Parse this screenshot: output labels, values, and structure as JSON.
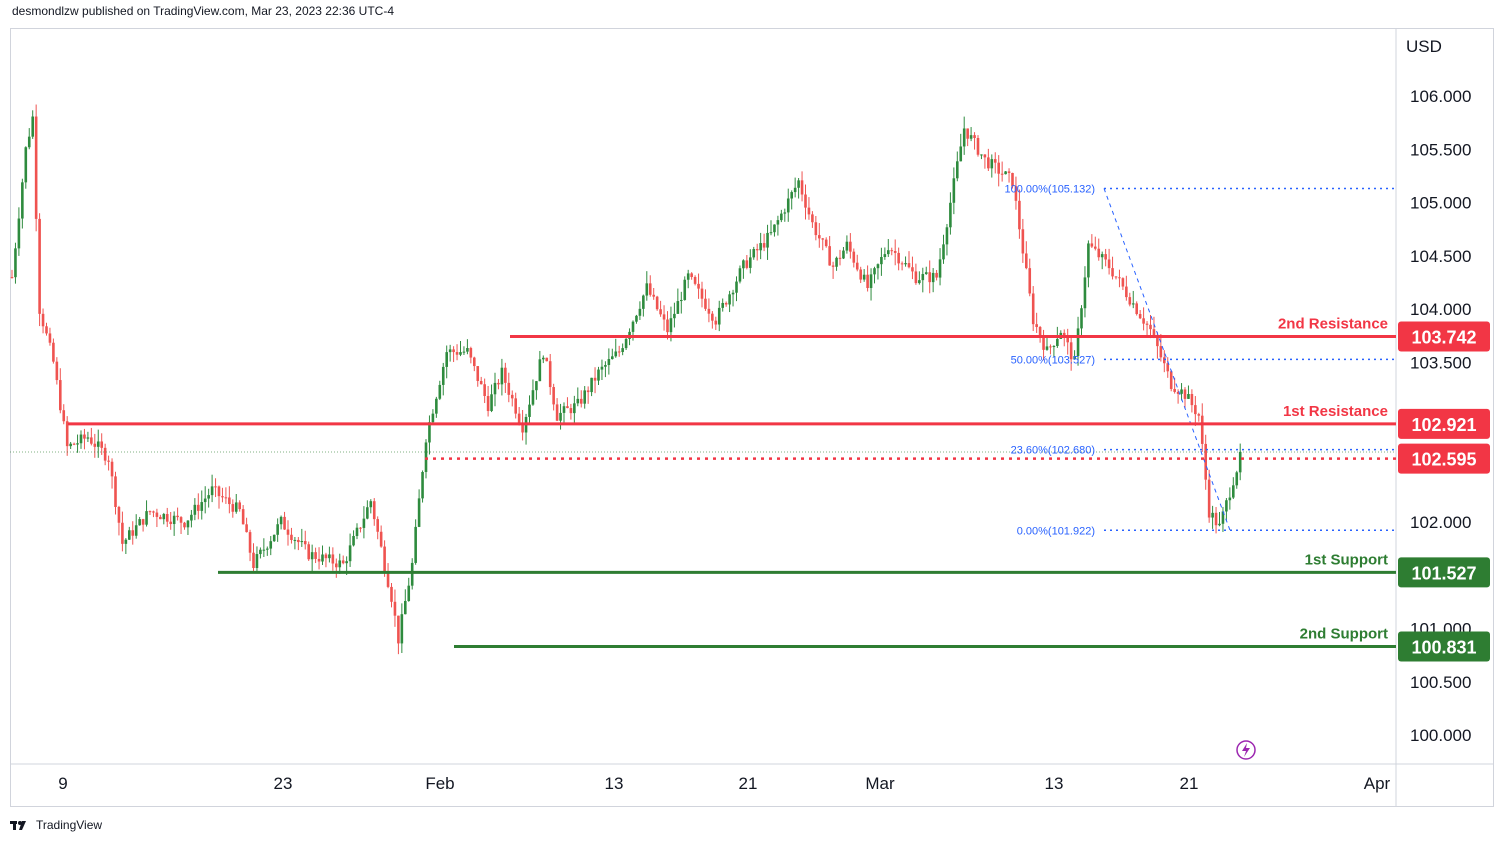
{
  "header": {
    "published_by": "desmondlzw published on TradingView.com, Mar 23, 2023 22:36 UTC-4"
  },
  "footer": {
    "brand": "TradingView"
  },
  "colors": {
    "up": "#26a69a",
    "up_body": "#2e8b3e",
    "down": "#ef5350",
    "resistance": "#f23645",
    "support": "#2e7d32",
    "fib": "#2962ff"
  },
  "chart_data": {
    "type": "candlestick",
    "currency": "USD",
    "ylim": [
      99.7,
      106.5
    ],
    "y_ticks": [
      "106.000",
      "105.500",
      "105.000",
      "104.500",
      "104.000",
      "103.500",
      "102.000",
      "101.000",
      "100.500",
      "100.000"
    ],
    "x_ticks": [
      "9",
      "23",
      "Feb",
      "13",
      "21",
      "Mar",
      "13",
      "21",
      "Apr"
    ],
    "levels": [
      {
        "name": "2nd Resistance",
        "value": "103.742",
        "kind": "resistance"
      },
      {
        "name": "1st Resistance",
        "value": "102.921",
        "kind": "resistance"
      },
      {
        "name": "",
        "value": "102.595",
        "kind": "current"
      },
      {
        "name": "1st Support",
        "value": "101.527",
        "kind": "support"
      },
      {
        "name": "2nd Support",
        "value": "100.831",
        "kind": "support"
      }
    ],
    "fibonacci": [
      {
        "label": "100.00%(105.132)",
        "value": 105.132
      },
      {
        "label": "50.00%(103.527)",
        "value": 103.527
      },
      {
        "label": "23.60%(102.680)",
        "value": 102.68
      },
      {
        "label": "0.00%(101.922)",
        "value": 101.922
      }
    ],
    "close_path": [
      [
        0,
        104.3
      ],
      [
        4,
        105.5
      ],
      [
        6,
        105.8
      ],
      [
        8,
        104.0
      ],
      [
        12,
        103.5
      ],
      [
        16,
        102.7
      ],
      [
        22,
        102.8
      ],
      [
        28,
        102.6
      ],
      [
        32,
        101.8
      ],
      [
        40,
        102.1
      ],
      [
        50,
        102.0
      ],
      [
        58,
        102.3
      ],
      [
        66,
        102.1
      ],
      [
        70,
        101.6
      ],
      [
        78,
        102.0
      ],
      [
        86,
        101.7
      ],
      [
        96,
        101.6
      ],
      [
        104,
        102.2
      ],
      [
        110,
        101.3
      ],
      [
        112,
        100.9
      ],
      [
        116,
        101.6
      ],
      [
        120,
        102.8
      ],
      [
        126,
        103.6
      ],
      [
        132,
        103.6
      ],
      [
        138,
        103.1
      ],
      [
        142,
        103.4
      ],
      [
        148,
        102.9
      ],
      [
        154,
        103.6
      ],
      [
        158,
        103.0
      ],
      [
        164,
        103.1
      ],
      [
        170,
        103.4
      ],
      [
        176,
        103.6
      ],
      [
        184,
        104.2
      ],
      [
        190,
        103.8
      ],
      [
        196,
        104.3
      ],
      [
        204,
        103.9
      ],
      [
        212,
        104.4
      ],
      [
        220,
        104.7
      ],
      [
        228,
        105.2
      ],
      [
        232,
        104.8
      ],
      [
        238,
        104.4
      ],
      [
        242,
        104.6
      ],
      [
        248,
        104.2
      ],
      [
        254,
        104.6
      ],
      [
        262,
        104.3
      ],
      [
        268,
        104.3
      ],
      [
        272,
        105.0
      ],
      [
        276,
        105.7
      ],
      [
        282,
        105.4
      ],
      [
        290,
        105.2
      ],
      [
        296,
        103.9
      ],
      [
        300,
        103.6
      ],
      [
        304,
        103.8
      ],
      [
        308,
        103.5
      ],
      [
        312,
        104.6
      ],
      [
        318,
        104.4
      ],
      [
        324,
        104.1
      ],
      [
        330,
        103.8
      ],
      [
        336,
        103.3
      ],
      [
        340,
        103.2
      ],
      [
        344,
        103.0
      ],
      [
        347,
        102.1
      ],
      [
        350,
        101.95
      ],
      [
        354,
        102.4
      ],
      [
        356,
        102.6
      ]
    ]
  }
}
